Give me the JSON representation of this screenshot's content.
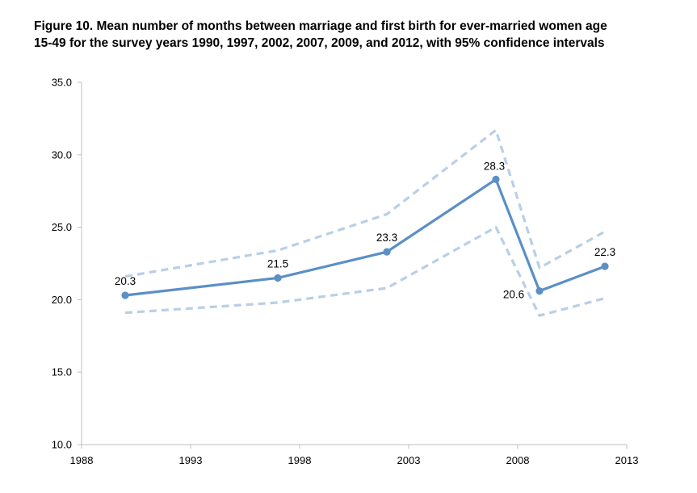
{
  "chart_data": {
    "type": "line",
    "title_lines": [
      "Figure 10. Mean number of months between marriage and first birth for ever-married women age",
      "15-49 for the survey years 1990, 1997, 2002, 2007, 2009, and 2012, with 95% confidence intervals"
    ],
    "x": [
      1990,
      1997,
      2002,
      2007,
      2009,
      2012
    ],
    "series": [
      {
        "role": "mean",
        "values": [
          20.3,
          21.5,
          23.3,
          28.3,
          20.6,
          22.3
        ],
        "labels": [
          "20.3",
          "21.5",
          "23.3",
          "28.3",
          "20.6",
          "22.3"
        ],
        "color": "#5b8fc7"
      },
      {
        "role": "upper",
        "values": [
          21.6,
          23.4,
          25.9,
          31.7,
          22.2,
          24.7
        ],
        "color": "#b9cfe6"
      },
      {
        "role": "lower",
        "values": [
          19.1,
          19.8,
          20.8,
          25.0,
          18.9,
          20.1
        ],
        "color": "#b9cfe6"
      }
    ],
    "xlim": [
      1988,
      2013
    ],
    "ylim": [
      10,
      35
    ],
    "x_ticks": [
      "1988",
      "1993",
      "1998",
      "2003",
      "2008",
      "2013"
    ],
    "y_ticks": [
      "10.0",
      "15.0",
      "20.0",
      "25.0",
      "30.0",
      "35.0"
    ],
    "xlabel": "",
    "ylabel": "",
    "grid": false,
    "legend": "none"
  }
}
